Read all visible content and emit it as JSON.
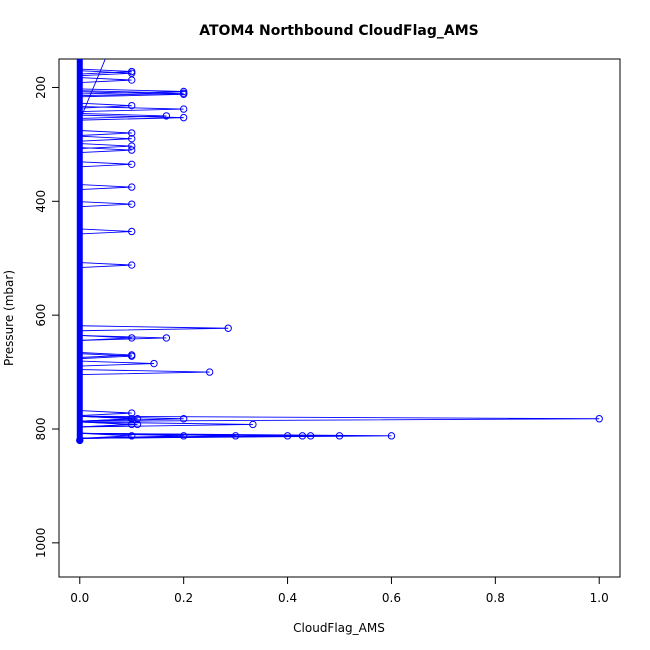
{
  "chart_data": {
    "type": "scatter",
    "title": "ATOM4 Northbound CloudFlag_AMS",
    "xlabel": "CloudFlag_AMS",
    "ylabel": "Pressure (mbar)",
    "xlim": [
      -0.04,
      1.04
    ],
    "ylim": [
      1060,
      150
    ],
    "y_reversed": true,
    "x_ticks": [
      "0.0",
      "0.2",
      "0.4",
      "0.6",
      "0.8",
      "1.0"
    ],
    "y_ticks": [
      "200",
      "400",
      "600",
      "800",
      "1000"
    ],
    "grid": false,
    "legend": "none",
    "series_color": "#0000ff",
    "baseline": {
      "x": 0.0,
      "pressure_range": [
        150,
        820
      ]
    },
    "points": [
      {
        "x": 0.1,
        "y": 172
      },
      {
        "x": 0.1,
        "y": 175
      },
      {
        "x": 0.1,
        "y": 187
      },
      {
        "x": 0.2,
        "y": 207
      },
      {
        "x": 0.2,
        "y": 210
      },
      {
        "x": 0.2,
        "y": 212
      },
      {
        "x": 0.1,
        "y": 232
      },
      {
        "x": 0.2,
        "y": 238
      },
      {
        "x": 0.1667,
        "y": 250
      },
      {
        "x": 0.2,
        "y": 253
      },
      {
        "x": 0.1,
        "y": 280
      },
      {
        "x": 0.1,
        "y": 290
      },
      {
        "x": 0.1,
        "y": 303
      },
      {
        "x": 0.1,
        "y": 310
      },
      {
        "x": 0.1,
        "y": 335
      },
      {
        "x": 0.1,
        "y": 375
      },
      {
        "x": 0.1,
        "y": 405
      },
      {
        "x": 0.1,
        "y": 453
      },
      {
        "x": 0.1,
        "y": 512
      },
      {
        "x": 0.2857,
        "y": 623
      },
      {
        "x": 0.1,
        "y": 640
      },
      {
        "x": 0.1667,
        "y": 640
      },
      {
        "x": 0.1,
        "y": 670
      },
      {
        "x": 0.1,
        "y": 672
      },
      {
        "x": 0.1429,
        "y": 685
      },
      {
        "x": 0.25,
        "y": 700
      },
      {
        "x": 0.1,
        "y": 772
      },
      {
        "x": 0.1,
        "y": 782
      },
      {
        "x": 0.1111,
        "y": 782
      },
      {
        "x": 0.2,
        "y": 782
      },
      {
        "x": 1.0,
        "y": 782
      },
      {
        "x": 0.1,
        "y": 792
      },
      {
        "x": 0.1111,
        "y": 792
      },
      {
        "x": 0.3333,
        "y": 792
      },
      {
        "x": 0.1,
        "y": 812
      },
      {
        "x": 0.2,
        "y": 812
      },
      {
        "x": 0.3,
        "y": 812
      },
      {
        "x": 0.4,
        "y": 812
      },
      {
        "x": 0.4286,
        "y": 812
      },
      {
        "x": 0.4444,
        "y": 812
      },
      {
        "x": 0.5,
        "y": 812
      },
      {
        "x": 0.6,
        "y": 812
      }
    ]
  }
}
